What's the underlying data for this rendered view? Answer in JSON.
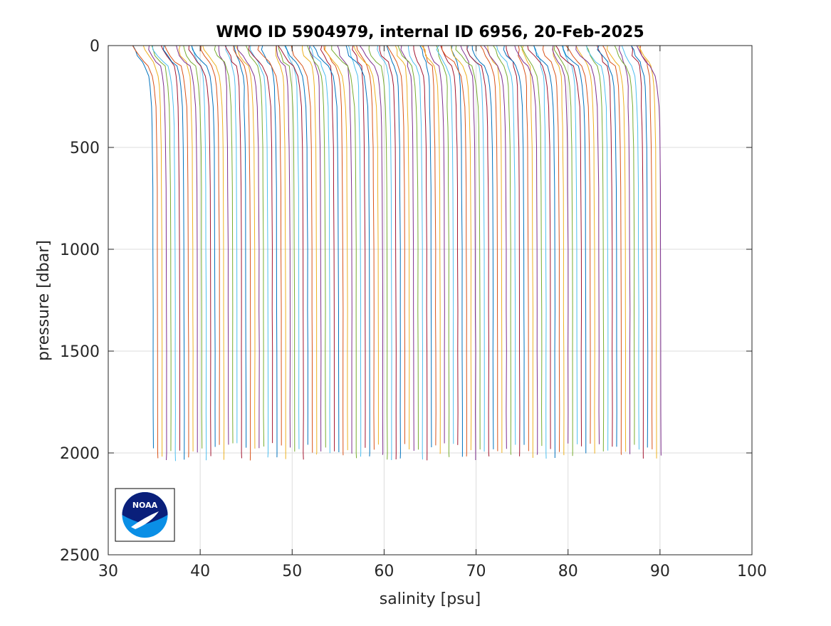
{
  "chart_data": {
    "type": "line",
    "title": "WMO ID 5904979, internal ID 6956, 20-Feb-2025",
    "xlabel": "salinity [psu]",
    "ylabel": "pressure [dbar]",
    "xlim": [
      30,
      100
    ],
    "ylim": [
      0,
      2500
    ],
    "y_reversed": true,
    "grid": true,
    "x_ticks": [
      {
        "value": 30,
        "label": "30"
      },
      {
        "value": 40,
        "label": "40"
      },
      {
        "value": 50,
        "label": "50"
      },
      {
        "value": 60,
        "label": "60"
      },
      {
        "value": 70,
        "label": "70"
      },
      {
        "value": 80,
        "label": "80"
      },
      {
        "value": 90,
        "label": "90"
      },
      {
        "value": 100,
        "label": "100"
      }
    ],
    "y_ticks": [
      {
        "value": 0,
        "label": "0"
      },
      {
        "value": 500,
        "label": "500"
      },
      {
        "value": 1000,
        "label": "1000"
      },
      {
        "value": 1500,
        "label": "1500"
      },
      {
        "value": 2000,
        "label": "2000"
      },
      {
        "value": 2500,
        "label": "2500"
      }
    ],
    "profiles": {
      "description": "Waterfall of salinity profiles, each successive profile offset by ~0.5 psu",
      "count": 116,
      "first_deep_salinity": 34.9,
      "offset_per_profile": 0.48,
      "pressure_levels": [
        0,
        20,
        50,
        80,
        100,
        150,
        200,
        300,
        400,
        500,
        700,
        1000,
        1300,
        1500,
        1800,
        2000
      ],
      "base_profile_relative": [
        -2.0,
        -1.9,
        -1.6,
        -1.1,
        -0.75,
        -0.45,
        -0.32,
        -0.2,
        -0.14,
        -0.1,
        -0.06,
        -0.03,
        -0.015,
        -0.008,
        -0.003,
        0.0
      ],
      "colors": [
        "#0072BD",
        "#D95319",
        "#EDB120",
        "#7E2F8E",
        "#77AC30",
        "#4DBEEE",
        "#A2142F"
      ]
    },
    "logo": {
      "text": "NOAA"
    }
  }
}
